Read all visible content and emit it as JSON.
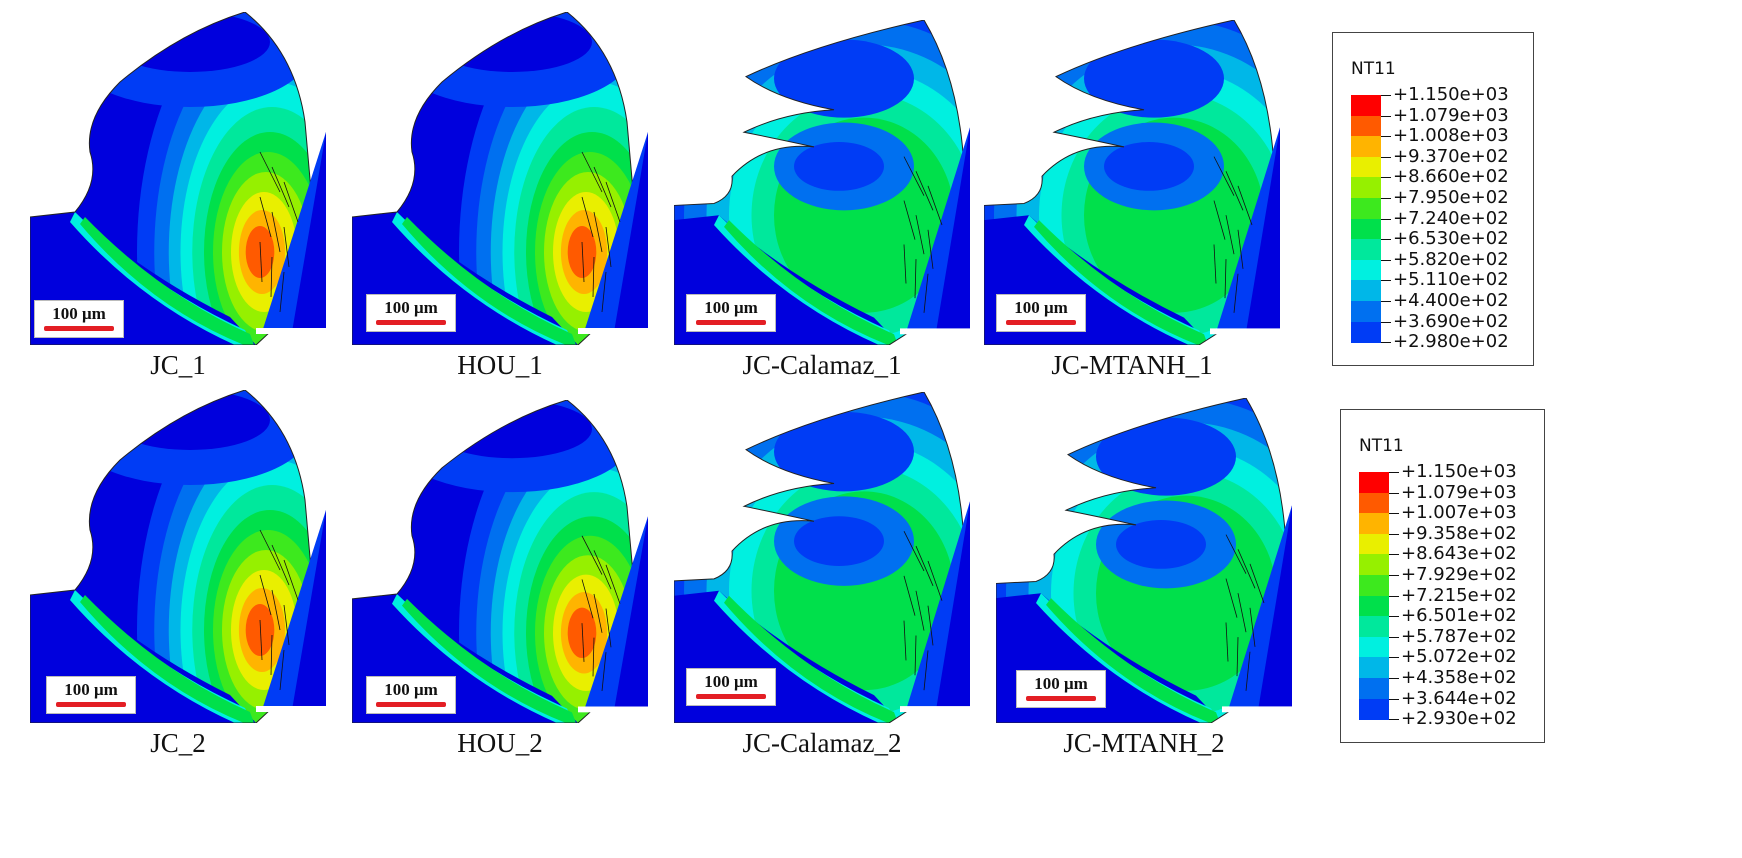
{
  "scale_bar_text": "100 μm",
  "panels": [
    {
      "caption": "JC_1"
    },
    {
      "caption": "HOU_1"
    },
    {
      "caption": "JC-Calamaz_1"
    },
    {
      "caption": "JC-MTANH_1"
    },
    {
      "caption": "JC_2"
    },
    {
      "caption": "HOU_2"
    },
    {
      "caption": "JC-Calamaz_2"
    },
    {
      "caption": "JC-MTANH_2"
    }
  ],
  "legends": [
    {
      "title": "NT11",
      "labels": [
        "+1.150e+03",
        "+1.079e+03",
        "+1.008e+03",
        "+9.370e+02",
        "+8.660e+02",
        "+7.950e+02",
        "+7.240e+02",
        "+6.530e+02",
        "+5.820e+02",
        "+5.110e+02",
        "+4.400e+02",
        "+3.690e+02",
        "+2.980e+02"
      ]
    },
    {
      "title": "NT11",
      "labels": [
        "+1.150e+03",
        "+1.079e+03",
        "+1.007e+03",
        "+9.358e+02",
        "+8.643e+02",
        "+7.929e+02",
        "+7.215e+02",
        "+6.501e+02",
        "+5.787e+02",
        "+5.072e+02",
        "+4.358e+02",
        "+3.644e+02",
        "+2.930e+02"
      ]
    }
  ],
  "colors": {
    "contour_bands": [
      "#ff0000",
      "#ff5a00",
      "#ffb400",
      "#e9ef00",
      "#96f000",
      "#3de91e",
      "#00e04b",
      "#00e89c",
      "#00f0e0",
      "#00b7e8",
      "#0070f0",
      "#003cf5",
      "#0000dd"
    ],
    "scale_bar": "#e31e24"
  }
}
